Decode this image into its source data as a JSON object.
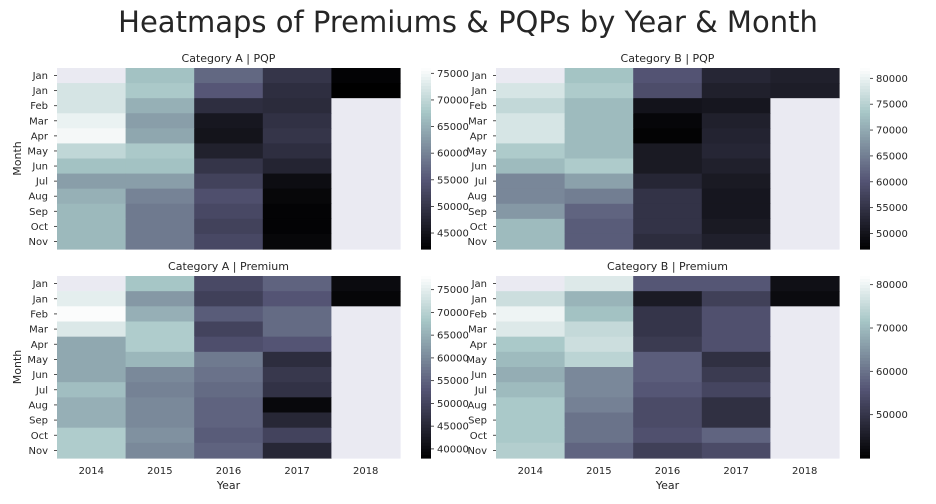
{
  "figure": {
    "title": "Heatmaps of Premiums & PQPs by Year & Month",
    "x_label": "Year",
    "y_label": "Month",
    "colormap": "bone",
    "missing_color": "#eaeaf2"
  },
  "chart_data": [
    {
      "type": "heatmap",
      "title": "Category A | PQP",
      "xlabel": "",
      "ylabel": "Month",
      "x": [
        "2014",
        "2015",
        "2016",
        "2017",
        "2018"
      ],
      "y": [
        "Jan",
        "Jan",
        "Feb",
        "Mar",
        "Apr",
        "May",
        "Jun",
        "Jul",
        "Aug",
        "Sep",
        "Oct",
        "Nov"
      ],
      "zlim": [
        42000,
        76000
      ],
      "colorbar_ticks": [
        45000,
        50000,
        55000,
        60000,
        65000,
        70000,
        75000
      ],
      "values": [
        [
          null,
          67000,
          57000,
          50000,
          42500
        ],
        [
          72000,
          68000,
          55000,
          49000,
          42000
        ],
        [
          72000,
          65000,
          49000,
          48500,
          null
        ],
        [
          74000,
          63000,
          45500,
          49500,
          null
        ],
        [
          75000,
          64000,
          45000,
          50000,
          null
        ],
        [
          70000,
          68000,
          47000,
          49000,
          null
        ],
        [
          67000,
          67000,
          50000,
          47500,
          null
        ],
        [
          63000,
          63000,
          52000,
          44000,
          null
        ],
        [
          65000,
          60000,
          54000,
          43000,
          null
        ],
        [
          66000,
          59000,
          53000,
          42500,
          null
        ],
        [
          66000,
          59000,
          52000,
          42500,
          null
        ],
        [
          66000,
          59000,
          53000,
          43000,
          null
        ]
      ]
    },
    {
      "type": "heatmap",
      "title": "Category B | PQP",
      "xlabel": "",
      "ylabel": "",
      "x": [
        "2014",
        "2015",
        "2016",
        "2017",
        "2018"
      ],
      "y": [
        "Jan",
        "Jan",
        "Feb",
        "Mar",
        "Apr",
        "May",
        "Jun",
        "Jul",
        "Aug",
        "Sep",
        "Oct",
        "Nov"
      ],
      "zlim": [
        47000,
        82000
      ],
      "colorbar_ticks": [
        50000,
        55000,
        60000,
        65000,
        70000,
        75000,
        80000
      ],
      "values": [
        [
          null,
          73000,
          60000,
          53000,
          52000
        ],
        [
          78000,
          74000,
          59000,
          52000,
          51500
        ],
        [
          76000,
          72000,
          50000,
          50500,
          null
        ],
        [
          78000,
          72000,
          48000,
          52000,
          null
        ],
        [
          78000,
          72000,
          47500,
          52500,
          null
        ],
        [
          74000,
          72000,
          51000,
          53000,
          null
        ],
        [
          72000,
          74000,
          51000,
          52000,
          null
        ],
        [
          66000,
          69000,
          53000,
          51000,
          null
        ],
        [
          66000,
          65000,
          55000,
          50500,
          null
        ],
        [
          68000,
          62000,
          55000,
          50500,
          null
        ],
        [
          72000,
          61000,
          55000,
          51000,
          null
        ],
        [
          72000,
          61000,
          54000,
          52000,
          null
        ]
      ]
    },
    {
      "type": "heatmap",
      "title": "Category A | Premium",
      "xlabel": "Year",
      "ylabel": "Month",
      "x": [
        "2014",
        "2015",
        "2016",
        "2017",
        "2018"
      ],
      "y": [
        "Jan",
        "Jan",
        "Feb",
        "Mar",
        "Apr",
        "May",
        "Jun",
        "Jul",
        "Aug",
        "Sep",
        "Oct",
        "Nov"
      ],
      "zlim": [
        38000,
        78000
      ],
      "colorbar_ticks": [
        40000,
        45000,
        50000,
        55000,
        60000,
        65000,
        70000,
        75000
      ],
      "values": [
        [
          null,
          68000,
          51000,
          55000,
          40000
        ],
        [
          75000,
          62000,
          49500,
          53000,
          39000
        ],
        [
          77500,
          65000,
          54000,
          56000,
          null
        ],
        [
          74000,
          69000,
          50000,
          56000,
          null
        ],
        [
          64000,
          69000,
          52000,
          53000,
          null
        ],
        [
          64000,
          66000,
          58000,
          46000,
          null
        ],
        [
          64000,
          60000,
          57000,
          48000,
          null
        ],
        [
          67000,
          59000,
          56000,
          47000,
          null
        ],
        [
          65000,
          60000,
          55000,
          39500,
          null
        ],
        [
          65000,
          60000,
          55000,
          45000,
          null
        ],
        [
          69000,
          61000,
          54000,
          50000,
          null
        ],
        [
          69000,
          60000,
          55000,
          45000,
          null
        ]
      ]
    },
    {
      "type": "heatmap",
      "title": "Category B | Premium",
      "xlabel": "Year",
      "ylabel": "",
      "x": [
        "2014",
        "2015",
        "2016",
        "2017",
        "2018"
      ],
      "y": [
        "Jan",
        "Jan",
        "Feb",
        "Mar",
        "Apr",
        "May",
        "Jun",
        "Jul",
        "Aug",
        "Sep",
        "Oct",
        "Nov"
      ],
      "zlim": [
        40000,
        82000
      ],
      "colorbar_ticks": [
        50000,
        60000,
        70000,
        80000
      ],
      "values": [
        [
          null,
          78000,
          56000,
          56000,
          43000
        ],
        [
          76000,
          69000,
          45000,
          52000,
          42000
        ],
        [
          80000,
          71000,
          50000,
          55000,
          null
        ],
        [
          78000,
          75000,
          50000,
          55000,
          null
        ],
        [
          72000,
          76000,
          51000,
          55000,
          null
        ],
        [
          70000,
          74000,
          57000,
          49000,
          null
        ],
        [
          68000,
          63000,
          57000,
          51000,
          null
        ],
        [
          70000,
          63000,
          56000,
          53000,
          null
        ],
        [
          72000,
          62000,
          54000,
          49000,
          null
        ],
        [
          72000,
          60000,
          54000,
          49000,
          null
        ],
        [
          72000,
          60000,
          55000,
          58000,
          null
        ],
        [
          73000,
          58000,
          52000,
          54000,
          null
        ]
      ]
    }
  ]
}
